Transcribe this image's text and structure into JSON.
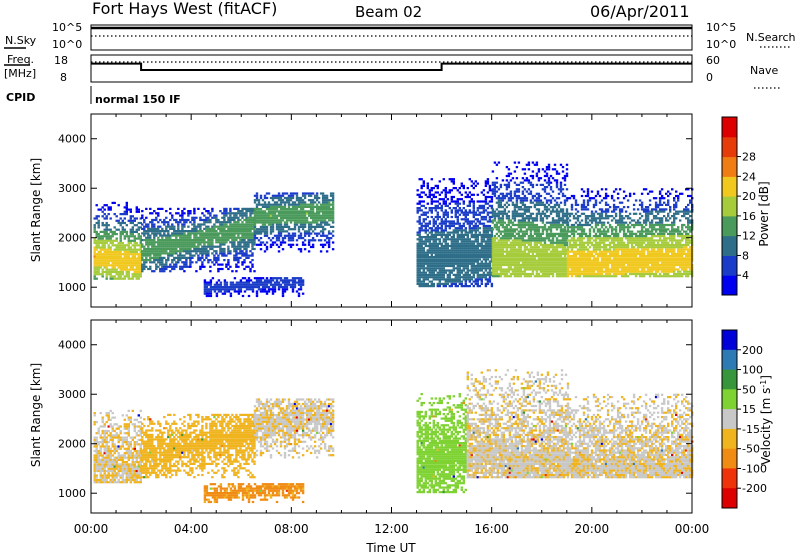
{
  "header": {
    "title": "Fort Hays West (fitACF)",
    "beam": "Beam 02",
    "date": "06/Apr/2011"
  },
  "top_panels": {
    "nsky": {
      "label": "N.Sky",
      "tick_high": "10^5",
      "tick_low": "10^0",
      "right_tick_high": "10^5",
      "right_tick_low": "10^0",
      "right_label": "N.Search"
    },
    "freq": {
      "label_line1": "Freq.",
      "label_line2": "[MHz]",
      "tick_high": "18",
      "tick_low": "8",
      "right_tick_high": "60",
      "right_tick_low": "0",
      "right_label": "Nave",
      "steps": [
        [
          0.0,
          17.2
        ],
        [
          2.0,
          17.2
        ],
        [
          2.0,
          14.0
        ],
        [
          14.0,
          14.0
        ],
        [
          14.0,
          17.2
        ],
        [
          24.0,
          17.2
        ]
      ]
    },
    "cpid": {
      "label": "CPID",
      "value": "normal 150 IF"
    }
  },
  "chart_data": [
    {
      "type": "heatmap",
      "name": "power",
      "ylabel": "Slant Range [km]",
      "xlabel": "",
      "x_range": [
        0,
        24
      ],
      "y_range": [
        600,
        4500
      ],
      "y_ticks": [
        "1000",
        "2000",
        "3000",
        "4000"
      ],
      "colorbar": {
        "label": "Power [dB]",
        "ticks": [
          "4",
          "8",
          "12",
          "16",
          "20",
          "24",
          "28"
        ],
        "colors": [
          "#0000f0",
          "#1a3cc8",
          "#2e6e88",
          "#4a9a5c",
          "#a6cc3c",
          "#f0c81e",
          "#f07d14",
          "#e63c0a",
          "#dc0000"
        ]
      },
      "bands": [
        {
          "t": [
            0.1,
            2.0
          ],
          "r": [
            1150,
            2700
          ],
          "c": [
            1600,
            1450
          ],
          "peak": 24,
          "noise": 0.1
        },
        {
          "t": [
            2.0,
            6.5
          ],
          "r": [
            1300,
            2600
          ],
          "c": [
            1700,
            2200
          ],
          "peak": 16,
          "noise": 0.1
        },
        {
          "t": [
            6.5,
            9.7
          ],
          "r": [
            1700,
            2900
          ],
          "c": [
            2400,
            2500
          ],
          "peak": 16,
          "noise": 0.1
        },
        {
          "t": [
            4.5,
            8.5
          ],
          "r": [
            800,
            1200
          ],
          "c": [
            950,
            1100
          ],
          "peak": 7,
          "noise": 0.0
        },
        {
          "t": [
            13.0,
            16.0
          ],
          "r": [
            1000,
            3200
          ],
          "c": [
            1500,
            1700
          ],
          "peak": 12,
          "noise": 0.1
        },
        {
          "t": [
            16.0,
            19.0
          ],
          "r": [
            1200,
            3500
          ],
          "c": [
            1600,
            1400
          ],
          "peak": 20,
          "noise": 0.1
        },
        {
          "t": [
            19.0,
            24.0
          ],
          "r": [
            1200,
            3000
          ],
          "c": [
            1450,
            1550
          ],
          "peak": 24,
          "noise": 0.1
        }
      ]
    },
    {
      "type": "heatmap",
      "name": "velocity",
      "ylabel": "Slant Range [km]",
      "xlabel": "Time UT",
      "x_range": [
        0,
        24
      ],
      "y_range": [
        600,
        4500
      ],
      "y_ticks": [
        "1000",
        "2000",
        "3000",
        "4000"
      ],
      "x_ticks": [
        "00:00",
        "04:00",
        "08:00",
        "12:00",
        "16:00",
        "20:00",
        "00:00"
      ],
      "colorbar": {
        "label": "Velocity [m s^-1]",
        "ticks": [
          "200",
          "100",
          "50",
          "15",
          "-15",
          "-50",
          "-100",
          "-200"
        ],
        "colors": [
          "#0000d8",
          "#2d7ab4",
          "#37963c",
          "#7ed232",
          "#c8c8c8",
          "#f0b41e",
          "#f08c14",
          "#f0320a",
          "#dc0000"
        ]
      },
      "bands": [
        {
          "t": [
            0.1,
            2.0
          ],
          "r": [
            1200,
            2700
          ],
          "c": [
            1600,
            1450
          ],
          "v": -15,
          "noise": 0.1
        },
        {
          "t": [
            2.0,
            6.5
          ],
          "r": [
            1300,
            2600
          ],
          "c": [
            1700,
            2200
          ],
          "v": -30,
          "noise": 0.1
        },
        {
          "t": [
            6.5,
            9.7
          ],
          "r": [
            1700,
            2900
          ],
          "c": [
            2400,
            2500
          ],
          "v": -10,
          "noise": 0.1
        },
        {
          "t": [
            4.5,
            8.5
          ],
          "r": [
            800,
            1200
          ],
          "c": [
            950,
            1100
          ],
          "v": -60,
          "noise": 0.0
        },
        {
          "t": [
            13.0,
            15.0
          ],
          "r": [
            1000,
            3000
          ],
          "c": [
            1500,
            1800
          ],
          "v": 30,
          "noise": 0.1
        },
        {
          "t": [
            15.0,
            19.0
          ],
          "r": [
            1300,
            3500
          ],
          "c": [
            1700,
            1600
          ],
          "v": -10,
          "noise": 0.1
        },
        {
          "t": [
            19.0,
            24.0
          ],
          "r": [
            1300,
            3000
          ],
          "c": [
            1500,
            1500
          ],
          "v": -10,
          "noise": 0.1
        }
      ]
    }
  ]
}
